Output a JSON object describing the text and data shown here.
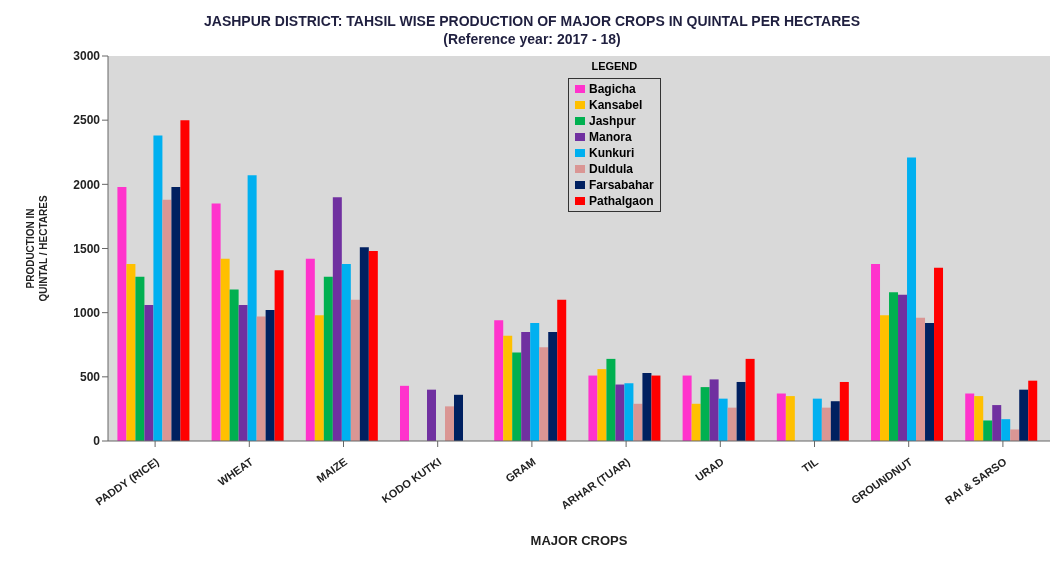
{
  "chart_data": {
    "type": "bar",
    "title": "JASHPUR DISTRICT: TAHSIL WISE PRODUCTION OF MAJOR CROPS IN QUINTAL PER HECTARES   (Reference year: 2017 - 18)",
    "xlabel": "MAJOR CROPS",
    "ylabel": "PRODUCTION IN QUINTAL / HECTARES",
    "legend_title": "LEGEND",
    "legend": "top",
    "ylim": [
      0,
      3000
    ],
    "yticks": [
      0,
      500,
      1000,
      1500,
      2000,
      2500,
      3000
    ],
    "categories": [
      "PADDY (RICE)",
      "WHEAT",
      "MAIZE",
      "KODO KUTKI",
      "GRAM",
      "ARHAR (TUAR)",
      "URAD",
      "TIL",
      "GROUNDNUT",
      "RAI & SARSO"
    ],
    "series": [
      {
        "name": "Bagicha",
        "color": "#ff33cc",
        "values": [
          1980,
          1850,
          1420,
          430,
          940,
          510,
          510,
          370,
          1380,
          370
        ]
      },
      {
        "name": "Kansabel",
        "color": "#ffc000",
        "values": [
          1380,
          1420,
          980,
          null,
          820,
          560,
          290,
          350,
          980,
          350
        ]
      },
      {
        "name": "Jashpur",
        "color": "#00b050",
        "values": [
          1280,
          1180,
          1280,
          null,
          690,
          640,
          420,
          null,
          1160,
          160
        ]
      },
      {
        "name": "Manora",
        "color": "#7030a0",
        "values": [
          1060,
          1060,
          1900,
          400,
          850,
          440,
          480,
          null,
          1140,
          280
        ]
      },
      {
        "name": "Kunkuri",
        "color": "#00b0f0",
        "values": [
          2380,
          2070,
          1380,
          null,
          920,
          450,
          330,
          330,
          2210,
          170
        ]
      },
      {
        "name": "Duldula",
        "color": "#da9694",
        "values": [
          1880,
          970,
          1100,
          270,
          730,
          290,
          260,
          260,
          960,
          90
        ]
      },
      {
        "name": "Farsabahar",
        "color": "#002060",
        "values": [
          1980,
          1020,
          1510,
          360,
          850,
          530,
          460,
          310,
          920,
          400
        ]
      },
      {
        "name": "Pathalgaon",
        "color": "#ff0000",
        "values": [
          2500,
          1330,
          1480,
          null,
          1100,
          510,
          640,
          460,
          1350,
          470
        ]
      }
    ]
  }
}
